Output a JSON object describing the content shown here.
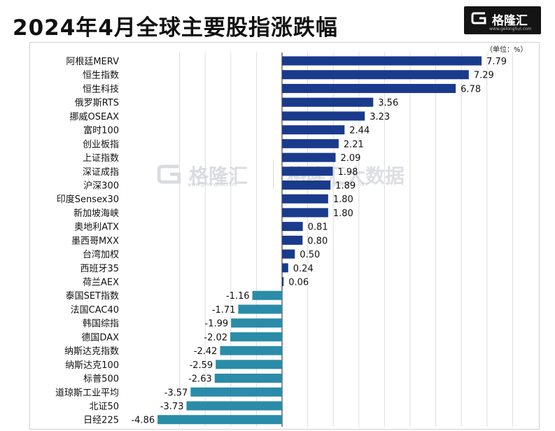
{
  "title": "2024年4月全球主要股指涨跌幅",
  "logo": {
    "text": "格隆汇",
    "url": "www.gelonghui.com",
    "icon": "gelonghui-logo-icon"
  },
  "watermark": {
    "text": "格隆汇",
    "url": "www.gelonghui.com",
    "text2": "格隆汇大数据",
    "url2": "bigdata.gelonghui.com"
  },
  "unit_label": "（单位：%）",
  "colors": {
    "positive": "#1a3a8c",
    "negative": "#2a8ca8",
    "axis": "#444444",
    "grid": "#dddddd"
  },
  "chart_data": {
    "type": "bar",
    "orientation": "horizontal",
    "title": "2024年4月全球主要股指涨跌幅",
    "unit": "%",
    "grid": true,
    "categories": [
      "阿根廷MERV",
      "恒生指数",
      "恒生科技",
      "俄罗斯RTS",
      "挪威OSEAX",
      "富时100",
      "创业板指",
      "上证指数",
      "深证成指",
      "沪深300",
      "印度Sensex30",
      "新加坡海峡",
      "奥地利ATX",
      "墨西哥MXX",
      "台湾加权",
      "西班牙35",
      "荷兰AEX",
      "泰国SET指数",
      "法国CAC40",
      "韩国综指",
      "德国DAX",
      "纳斯达克指数",
      "纳斯达克100",
      "标普500",
      "道琼斯工业平均",
      "北证50",
      "日经225"
    ],
    "values": [
      7.79,
      7.29,
      6.78,
      3.56,
      3.23,
      2.44,
      2.21,
      2.09,
      1.98,
      1.89,
      1.8,
      1.8,
      0.81,
      0.8,
      0.5,
      0.24,
      0.06,
      -1.16,
      -1.71,
      -1.99,
      -2.02,
      -2.42,
      -2.59,
      -2.63,
      -3.57,
      -3.73,
      -4.86
    ],
    "value_labels": [
      "7.79",
      "7.29",
      "6.78",
      "3.56",
      "3.23",
      "2.44",
      "2.21",
      "2.09",
      "1.98",
      "1.89",
      "1.80",
      "1.80",
      "0.81",
      "0.80",
      "0.50",
      "0.24",
      "0.06",
      "-1.16",
      "-1.71",
      "-1.99",
      "-2.02",
      "-2.42",
      "-2.59",
      "-2.63",
      "-3.57",
      "-3.73",
      "-4.86"
    ],
    "xlim": [
      -5,
      9
    ]
  }
}
